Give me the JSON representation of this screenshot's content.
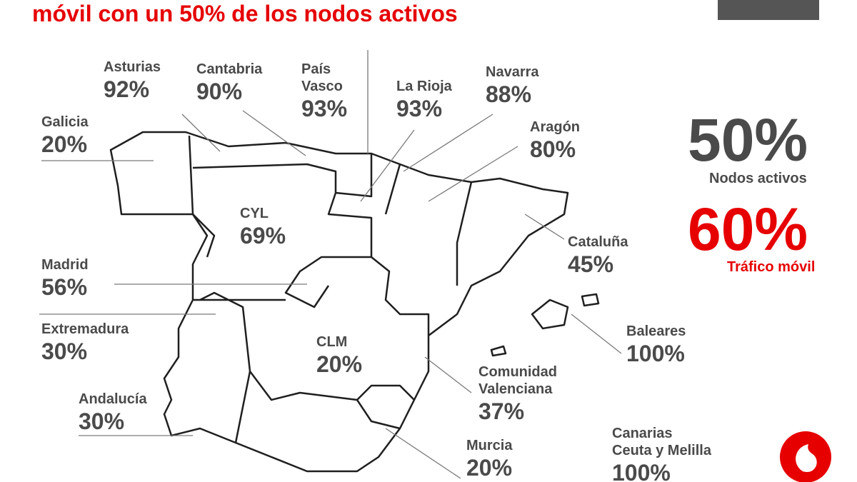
{
  "title": "móvil con un 50% de los nodos activos",
  "regions": [
    {
      "name": [
        "Galicia"
      ],
      "value": "20%"
    },
    {
      "name": [
        "Asturias"
      ],
      "value": "92%"
    },
    {
      "name": [
        "Cantabria"
      ],
      "value": "90%"
    },
    {
      "name": [
        "País",
        "Vasco"
      ],
      "value": "93%"
    },
    {
      "name": [
        "La Rioja"
      ],
      "value": "93%"
    },
    {
      "name": [
        "Navarra"
      ],
      "value": "88%"
    },
    {
      "name": [
        "Aragón"
      ],
      "value": "80%"
    },
    {
      "name": [
        "CYL"
      ],
      "value": "69%"
    },
    {
      "name": [
        "Madrid"
      ],
      "value": "56%"
    },
    {
      "name": [
        "Extremadura"
      ],
      "value": "30%"
    },
    {
      "name": [
        "Andalucía"
      ],
      "value": "30%"
    },
    {
      "name": [
        "CLM"
      ],
      "value": "20%"
    },
    {
      "name": [
        "Cataluña"
      ],
      "value": "45%"
    },
    {
      "name": [
        "Baleares"
      ],
      "value": "100%"
    },
    {
      "name": [
        "Comunidad",
        "Valenciana"
      ],
      "value": "37%"
    },
    {
      "name": [
        "Murcia"
      ],
      "value": "20%"
    },
    {
      "name": [
        "Canarias",
        "Ceuta y Melilla"
      ],
      "value": "100%"
    }
  ],
  "summary": {
    "nodes_value": "50%",
    "nodes_label": "Nodos activos",
    "traffic_value": "60%",
    "traffic_label": "Tráfico móvil"
  }
}
